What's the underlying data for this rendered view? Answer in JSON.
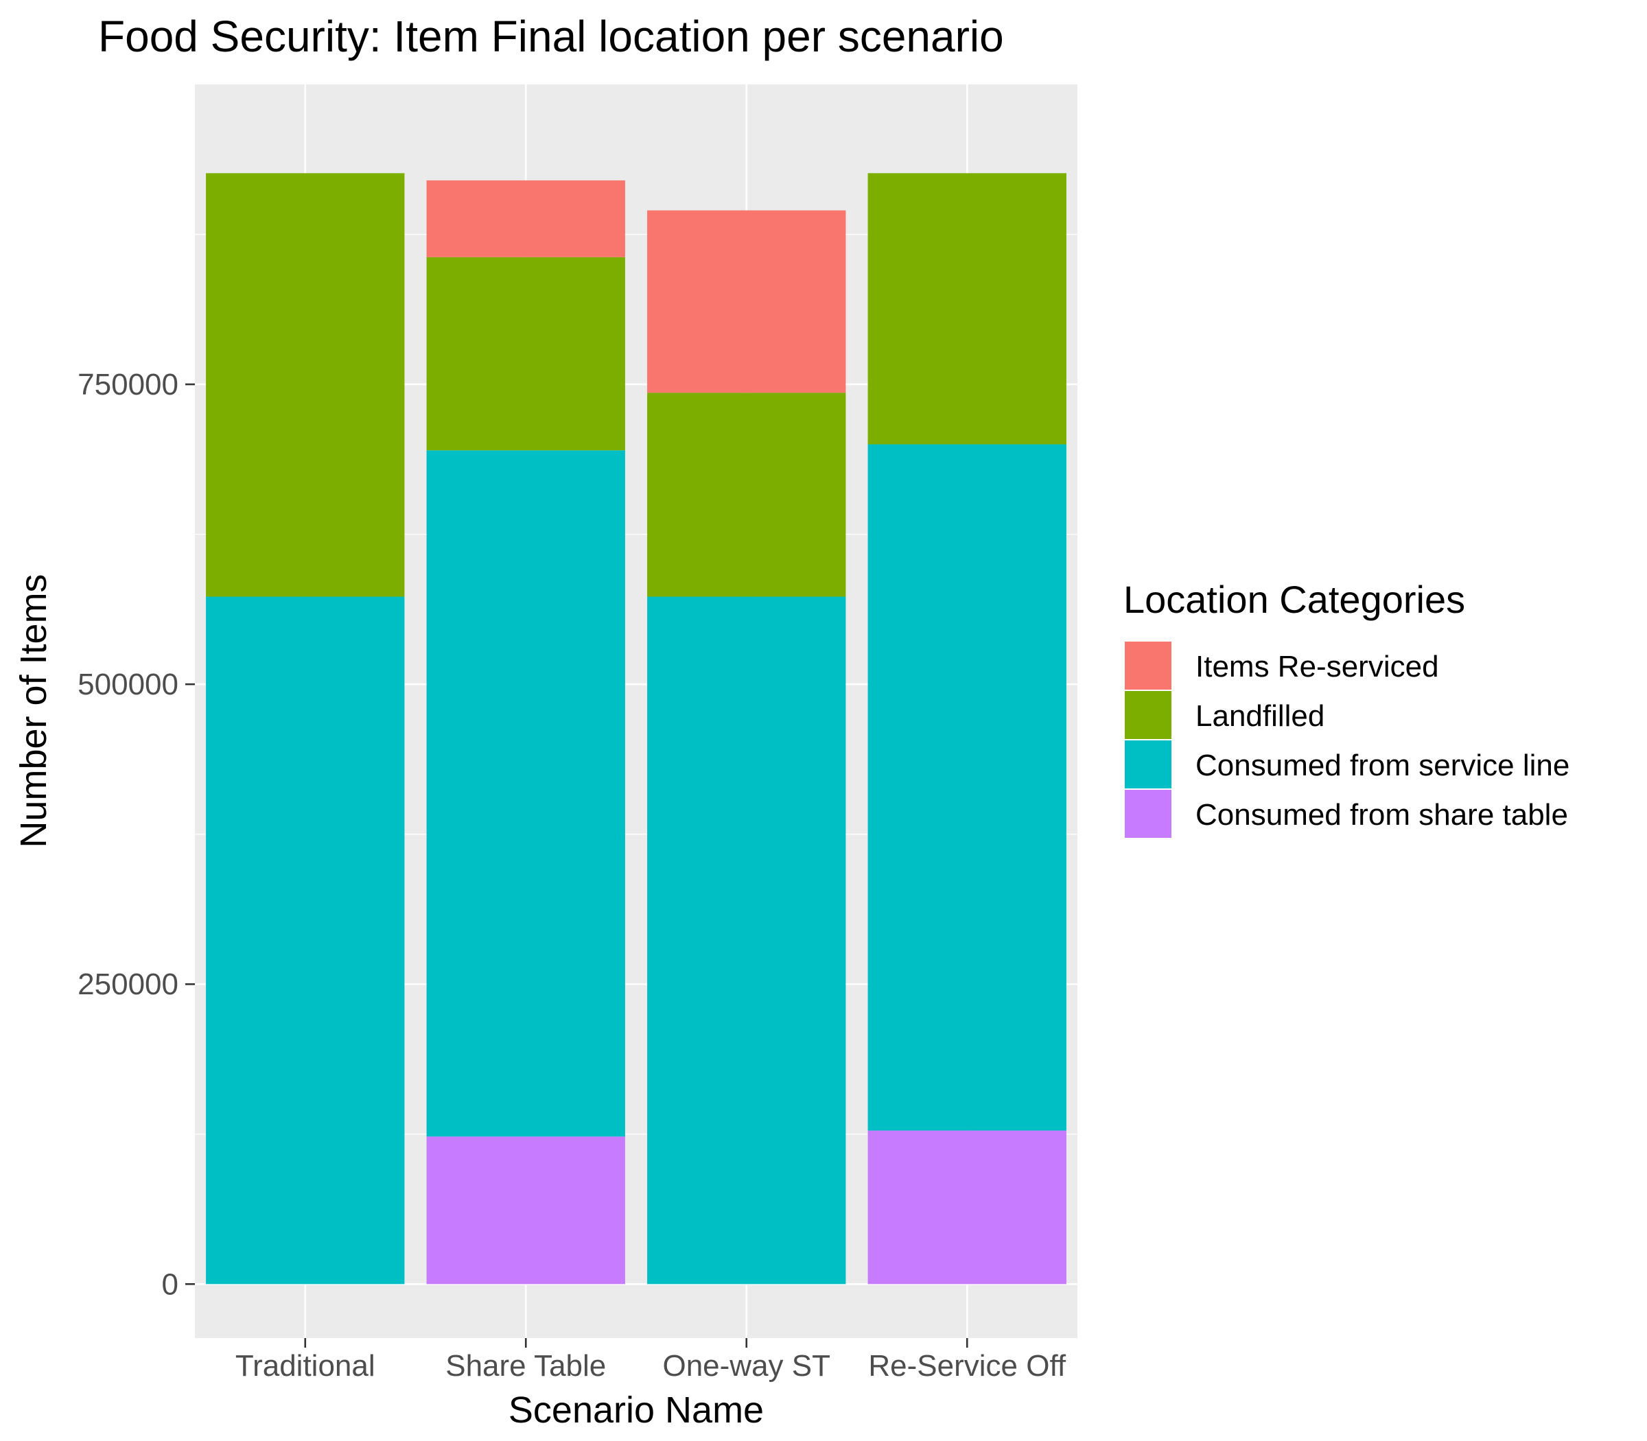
{
  "chart_data": {
    "type": "bar",
    "stacked": true,
    "title": "Food Security: Item Final location per scenario",
    "xlabel": "Scenario Name",
    "ylabel": "Number of Items",
    "categories": [
      "Traditional",
      "Share Table",
      "One-way ST",
      "Re-Service Off"
    ],
    "yticks": [
      0,
      250000,
      500000,
      750000
    ],
    "ytick_labels": [
      "0",
      "250000",
      "500000",
      "750000"
    ],
    "ylim": [
      -45000,
      1000000
    ],
    "grid": true,
    "legend_position": "right",
    "legend_title": "Location Categories",
    "series": [
      {
        "name": "Consumed from share table",
        "color": "#C77CFF",
        "values": [
          0,
          123000,
          0,
          128000
        ]
      },
      {
        "name": "Consumed from service line",
        "color": "#00BFC4",
        "values": [
          573000,
          572000,
          573000,
          572000
        ]
      },
      {
        "name": "Landfilled",
        "color": "#7CAE00",
        "values": [
          353000,
          161000,
          170000,
          226000
        ]
      },
      {
        "name": "Items Re-serviced",
        "color": "#F8766D",
        "values": [
          0,
          64000,
          152000,
          0
        ]
      }
    ],
    "legend_order": [
      "Items Re-serviced",
      "Landfilled",
      "Consumed from service line",
      "Consumed from share table"
    ]
  },
  "colors": {
    "panel_background": "#EBEBEB",
    "grid": "#FFFFFF"
  }
}
